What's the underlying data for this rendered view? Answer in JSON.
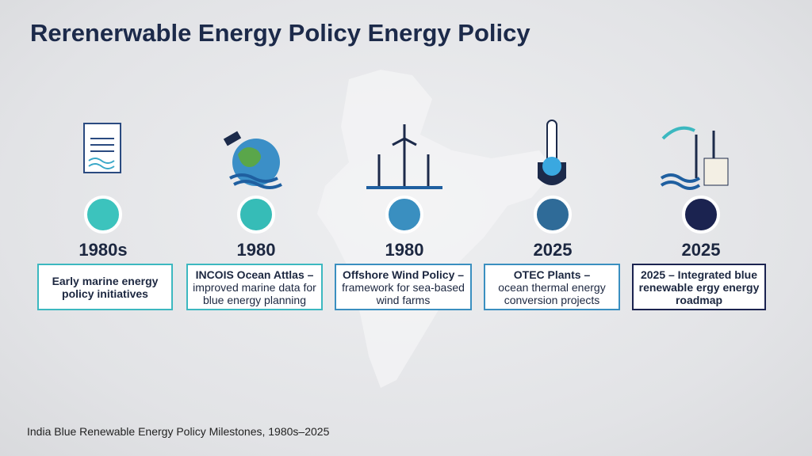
{
  "header": {
    "title": "Rerenerwable Energy Policy Energy Policy"
  },
  "milestones": [
    {
      "year": "1980s",
      "heading": "Early marine energy policy initiatives"
    },
    {
      "year": "1980",
      "heading": "INCOIS Ocean Attlas –",
      "body": "improved marine data for blue energy planning"
    },
    {
      "year": "1980",
      "heading": "Offshore Wind Policy –",
      "body": "framework for sea-based wind farms"
    },
    {
      "year": "2025",
      "heading": "OTEC Plants –",
      "body": "ocean thermal energy conversion projects"
    },
    {
      "year": "2025",
      "heading": "2025 – Integrated blue renewable ergy energy roadmap"
    }
  ],
  "caption": "India Blue Renewable Energy Policy Milestones, 1980s–2025"
}
